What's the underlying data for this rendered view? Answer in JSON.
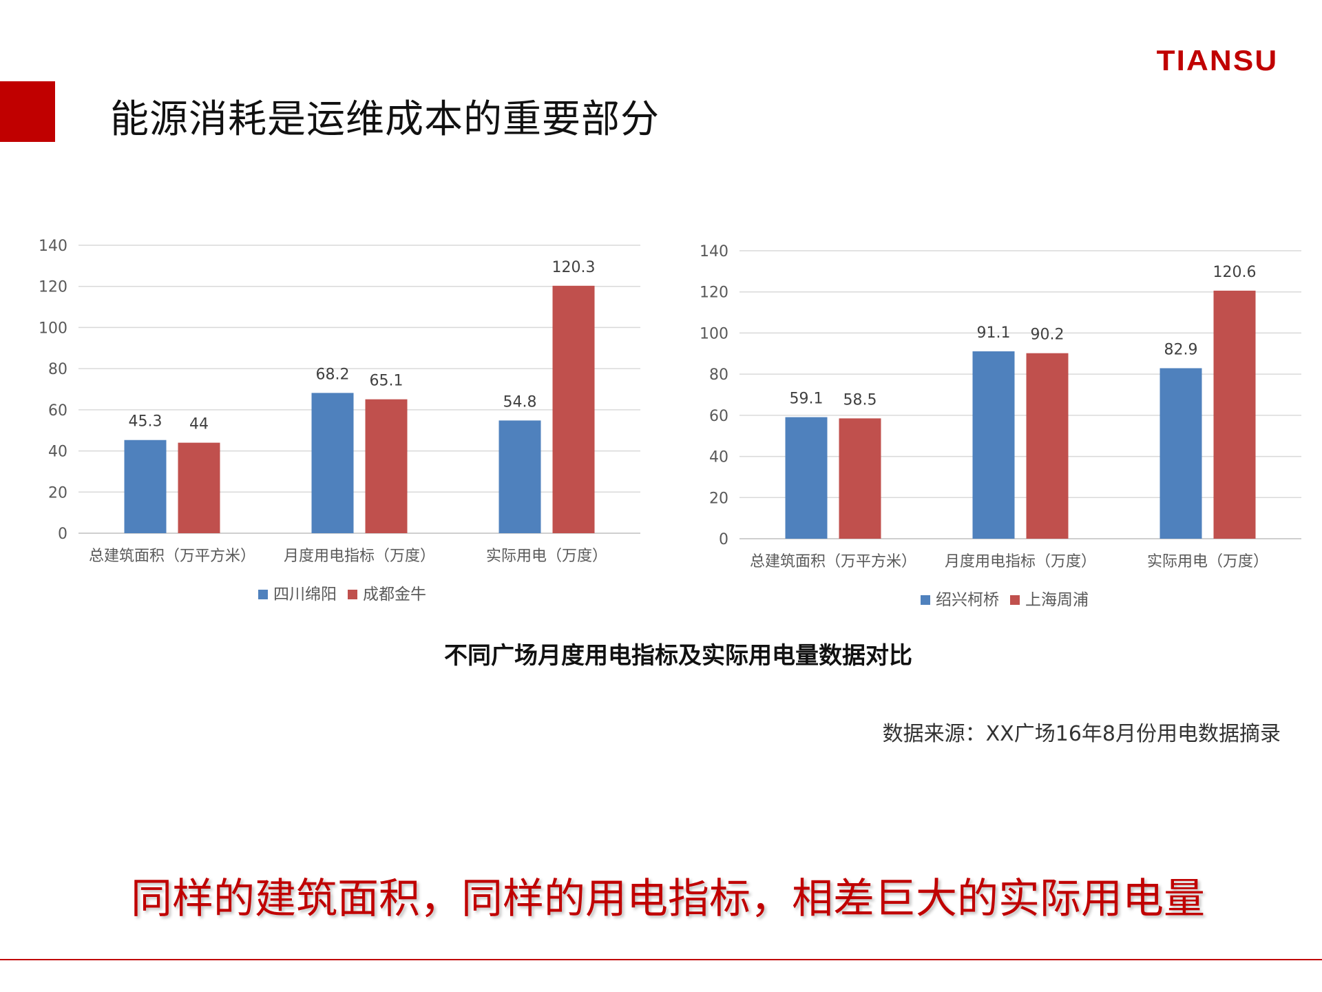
{
  "slide": {
    "title": "能源消耗是运维成本的重要部分",
    "logo": "TIANSU",
    "caption": "不同广场月度用电指标及实际用电量数据对比",
    "source": "数据来源：XX广场16年8月份用电数据摘录",
    "conclusion": "同样的建筑面积，同样的用电指标，相差巨大的实际用电量",
    "accent_color": "#c00000"
  },
  "chart_data": [
    {
      "type": "bar",
      "categories": [
        "总建筑面积（万平方米）",
        "月度用电指标（万度）",
        "实际用电（万度）"
      ],
      "series": [
        {
          "name": "四川绵阳",
          "values": [
            45.3,
            68.2,
            54.8
          ],
          "color": "#4f81bd"
        },
        {
          "name": "成都金牛",
          "values": [
            44,
            65.1,
            120.3
          ],
          "color": "#c0504d"
        }
      ],
      "ylim": [
        0,
        140
      ],
      "yticks": [
        0,
        20,
        40,
        60,
        80,
        100,
        120,
        140
      ],
      "grid": true,
      "legend_position": "bottom"
    },
    {
      "type": "bar",
      "categories": [
        "总建筑面积（万平方米）",
        "月度用电指标（万度）",
        "实际用电（万度）"
      ],
      "series": [
        {
          "name": "绍兴柯桥",
          "values": [
            59.1,
            91.1,
            82.9
          ],
          "color": "#4f81bd"
        },
        {
          "name": "上海周浦",
          "values": [
            58.5,
            90.2,
            120.6
          ],
          "color": "#c0504d"
        }
      ],
      "ylim": [
        0,
        140
      ],
      "yticks": [
        0,
        20,
        40,
        60,
        80,
        100,
        120,
        140
      ],
      "grid": true,
      "legend_position": "bottom"
    }
  ]
}
